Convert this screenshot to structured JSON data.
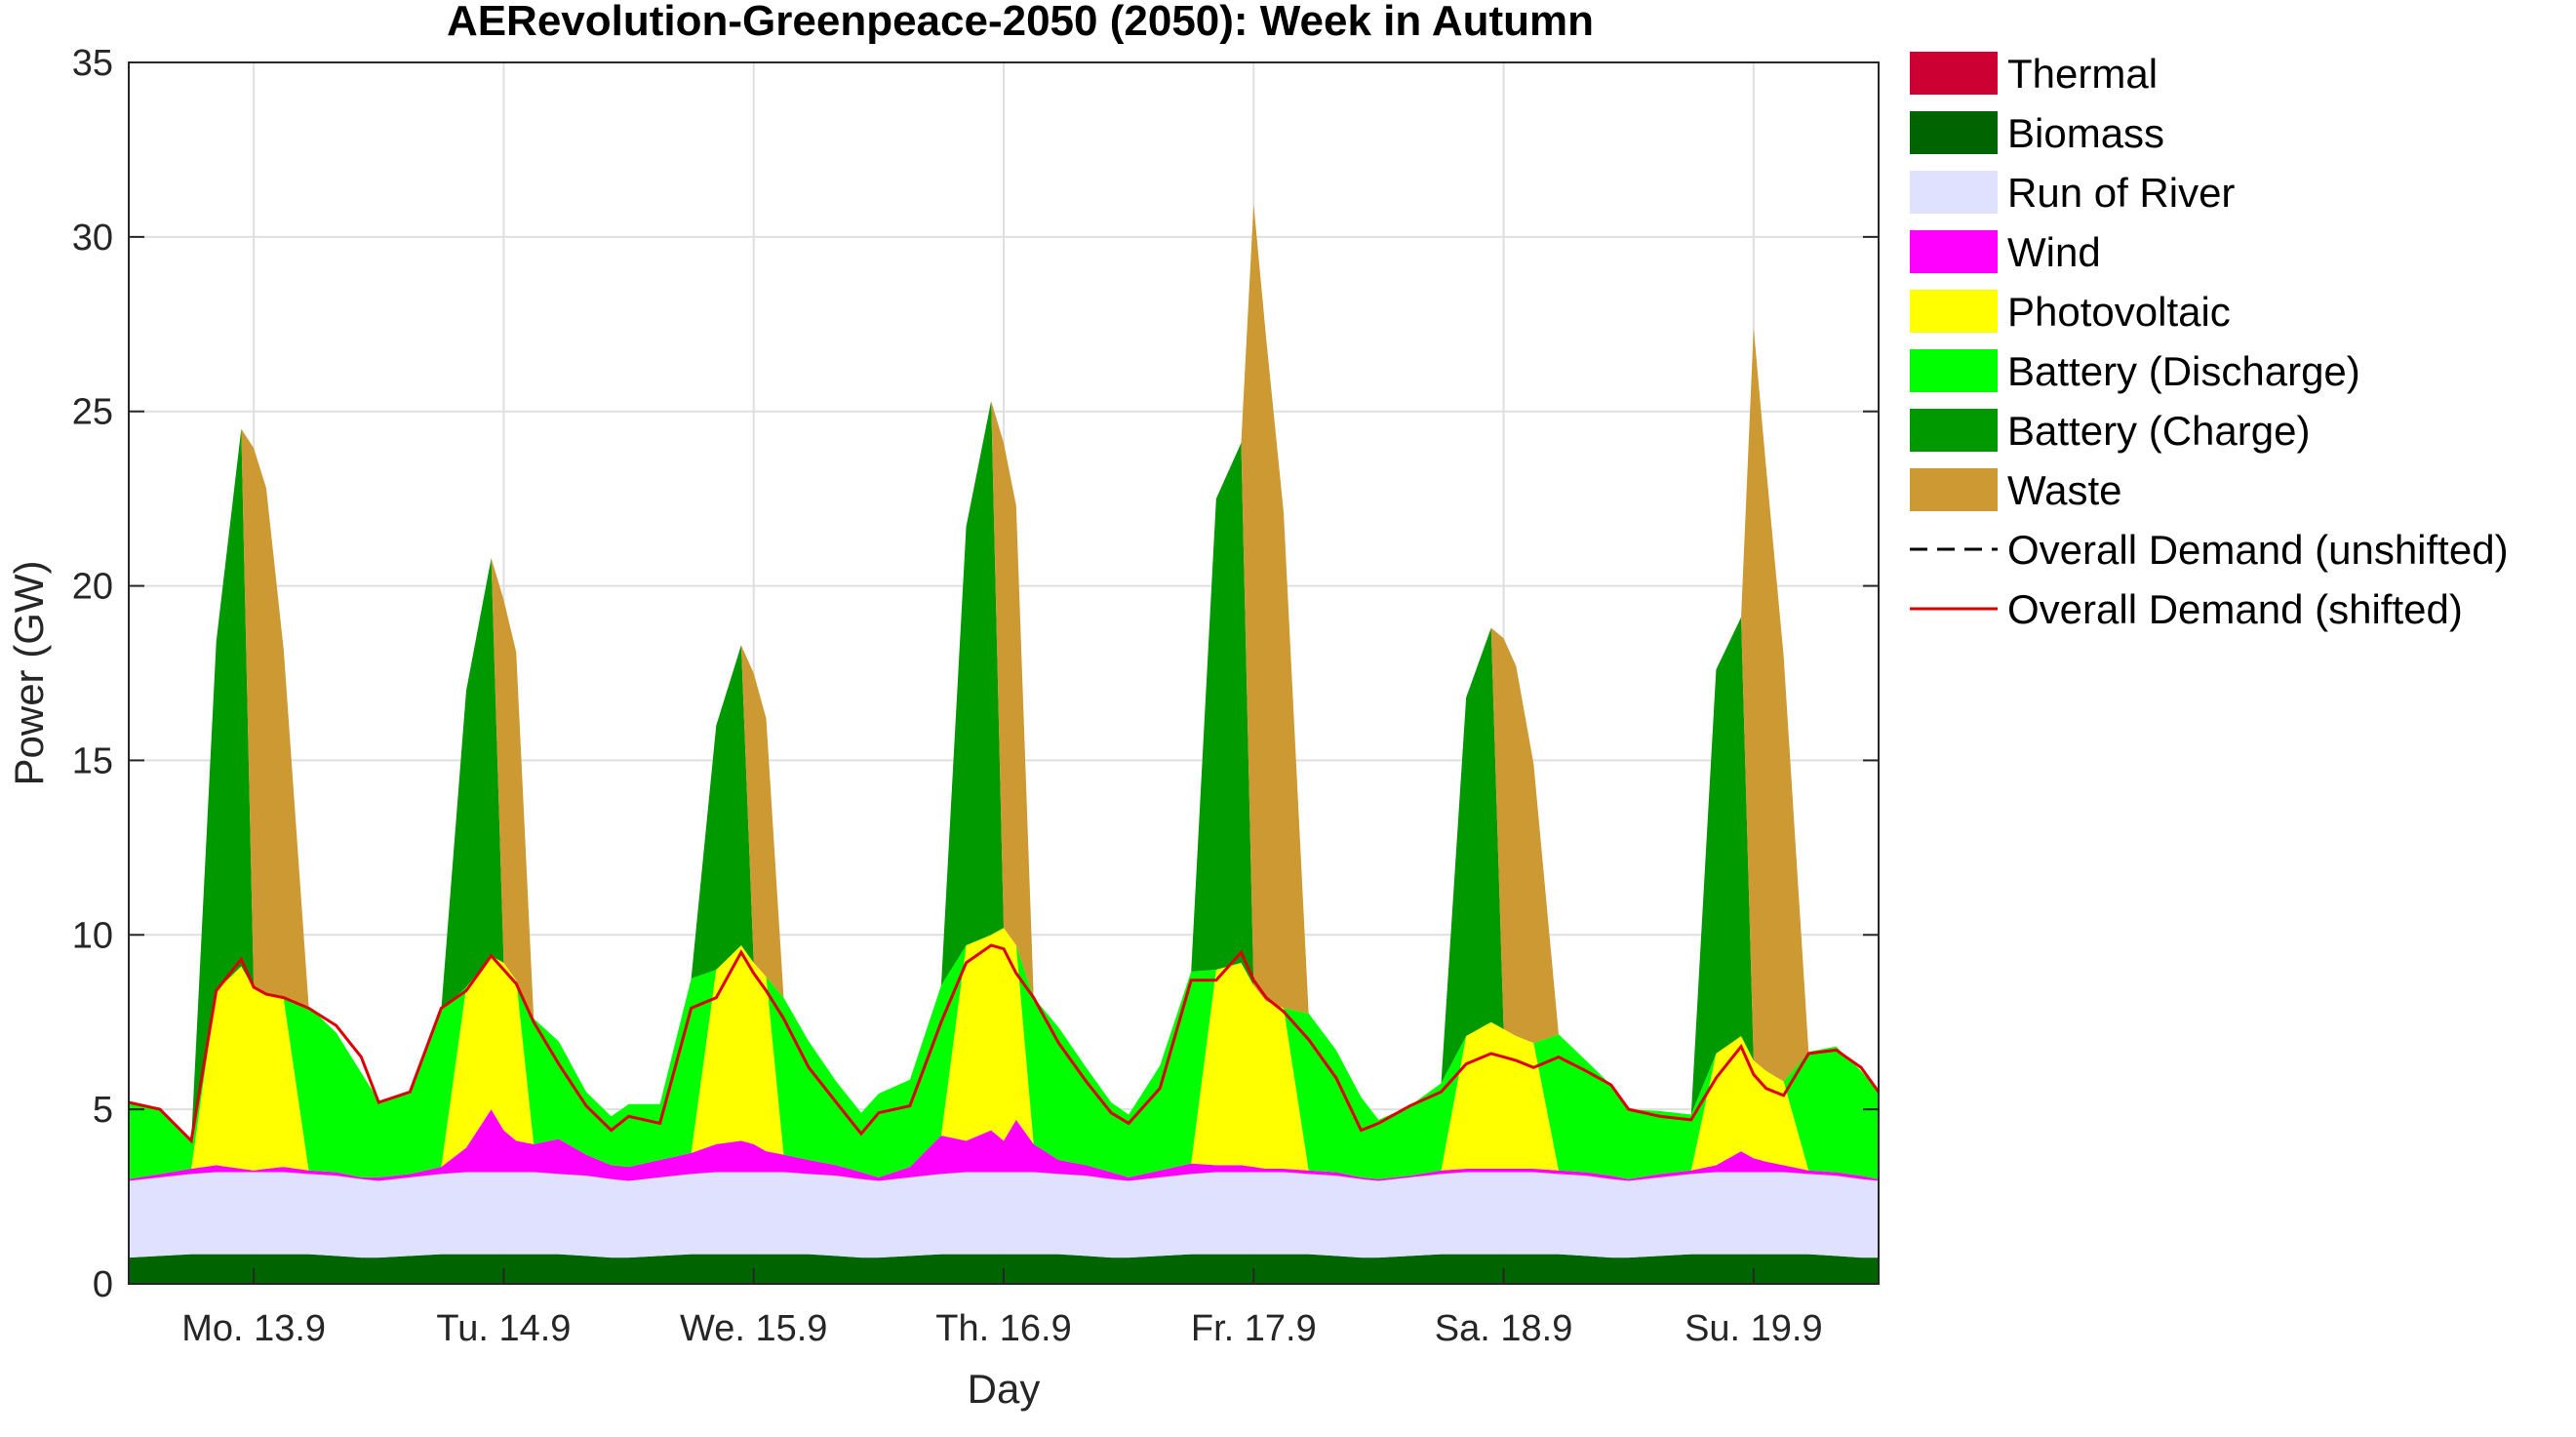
{
  "chart_data": {
    "type": "area",
    "title": "AERevolution-Greenpeace-2050 (2050): Week in Autumn",
    "xlabel": "Day",
    "ylabel": "Power (GW)",
    "ylim": [
      0,
      35
    ],
    "yticks": [
      0,
      5,
      10,
      15,
      20,
      25,
      30,
      35
    ],
    "xlim": [
      0,
      7
    ],
    "x_tick_labels": [
      "Mo. 13.9",
      "Tu. 14.9",
      "We. 15.9",
      "Th. 16.9",
      "Fr. 17.9",
      "Sa. 18.9",
      "Su. 19.9"
    ],
    "x_tick_positions": [
      0.5,
      1.5,
      2.5,
      3.5,
      4.5,
      5.5,
      6.5
    ],
    "grid": true,
    "legend_position": "outside-right",
    "x_unit": "days from Mon 13.9 00:00",
    "x": [
      0,
      0.125,
      0.25,
      0.35,
      0.45,
      0.5,
      0.55,
      0.62,
      0.72,
      0.83,
      0.93,
      1,
      1.125,
      1.25,
      1.35,
      1.45,
      1.5,
      1.55,
      1.62,
      1.72,
      1.83,
      1.93,
      2,
      2.125,
      2.25,
      2.35,
      2.45,
      2.5,
      2.55,
      2.62,
      2.72,
      2.83,
      2.93,
      3,
      3.125,
      3.25,
      3.35,
      3.45,
      3.5,
      3.55,
      3.62,
      3.72,
      3.83,
      3.93,
      4,
      4.125,
      4.25,
      4.35,
      4.45,
      4.5,
      4.55,
      4.62,
      4.72,
      4.83,
      4.93,
      5,
      5.125,
      5.25,
      5.35,
      5.45,
      5.5,
      5.55,
      5.62,
      5.72,
      5.83,
      5.93,
      6,
      6.125,
      6.25,
      6.35,
      6.45,
      6.5,
      6.55,
      6.62,
      6.72,
      6.83,
      6.93,
      7
    ],
    "series": [
      {
        "name": "Thermal",
        "color": "#cc0033",
        "values": [
          0,
          0,
          0,
          0,
          0,
          0,
          0,
          0,
          0,
          0,
          0,
          0,
          0,
          0,
          0,
          0,
          0,
          0,
          0,
          0,
          0,
          0,
          0,
          0,
          0,
          0,
          0,
          0,
          0,
          0,
          0,
          0,
          0,
          0,
          0,
          0,
          0,
          0,
          0,
          0,
          0,
          0,
          0,
          0,
          0,
          0,
          0,
          0,
          0,
          0,
          0,
          0,
          0,
          0,
          0,
          0,
          0,
          0,
          0,
          0,
          0,
          0,
          0,
          0,
          0,
          0,
          0,
          0,
          0,
          0,
          0,
          0,
          0,
          0,
          0,
          0,
          0,
          0
        ]
      },
      {
        "name": "Biomass",
        "color": "#006400",
        "values": [
          0.75,
          0.8,
          0.85,
          0.85,
          0.85,
          0.85,
          0.85,
          0.85,
          0.85,
          0.8,
          0.75,
          0.75,
          0.8,
          0.85,
          0.85,
          0.85,
          0.85,
          0.85,
          0.85,
          0.85,
          0.8,
          0.75,
          0.75,
          0.8,
          0.85,
          0.85,
          0.85,
          0.85,
          0.85,
          0.85,
          0.85,
          0.8,
          0.75,
          0.75,
          0.8,
          0.85,
          0.85,
          0.85,
          0.85,
          0.85,
          0.85,
          0.85,
          0.8,
          0.75,
          0.75,
          0.8,
          0.85,
          0.85,
          0.85,
          0.85,
          0.85,
          0.85,
          0.85,
          0.8,
          0.75,
          0.75,
          0.8,
          0.85,
          0.85,
          0.85,
          0.85,
          0.85,
          0.85,
          0.85,
          0.8,
          0.75,
          0.75,
          0.8,
          0.85,
          0.85,
          0.85,
          0.85,
          0.85,
          0.85,
          0.85,
          0.8,
          0.75,
          0.75
        ]
      },
      {
        "name": "Run of River",
        "color": "#e0e0ff",
        "values": [
          2.2,
          2.25,
          2.3,
          2.35,
          2.35,
          2.35,
          2.35,
          2.35,
          2.3,
          2.3,
          2.25,
          2.2,
          2.25,
          2.3,
          2.35,
          2.35,
          2.35,
          2.35,
          2.35,
          2.3,
          2.3,
          2.25,
          2.2,
          2.25,
          2.3,
          2.35,
          2.35,
          2.35,
          2.35,
          2.35,
          2.3,
          2.3,
          2.25,
          2.2,
          2.25,
          2.3,
          2.35,
          2.35,
          2.35,
          2.35,
          2.35,
          2.3,
          2.3,
          2.25,
          2.2,
          2.25,
          2.3,
          2.35,
          2.35,
          2.35,
          2.35,
          2.35,
          2.3,
          2.3,
          2.25,
          2.2,
          2.25,
          2.3,
          2.35,
          2.35,
          2.35,
          2.35,
          2.35,
          2.3,
          2.3,
          2.25,
          2.2,
          2.25,
          2.3,
          2.35,
          2.35,
          2.35,
          2.35,
          2.35,
          2.3,
          2.3,
          2.25,
          2.2
        ]
      },
      {
        "name": "Wind",
        "color": "#ff00ff",
        "values": [
          0.05,
          0.1,
          0.15,
          0.2,
          0.1,
          0.05,
          0.1,
          0.15,
          0.1,
          0.1,
          0.05,
          0.1,
          0.1,
          0.2,
          0.7,
          1.8,
          1.2,
          0.9,
          0.8,
          1.0,
          0.6,
          0.4,
          0.4,
          0.5,
          0.6,
          0.8,
          0.9,
          0.8,
          0.6,
          0.5,
          0.4,
          0.3,
          0.2,
          0.1,
          0.3,
          1.1,
          0.9,
          1.2,
          0.9,
          1.5,
          0.8,
          0.4,
          0.3,
          0.2,
          0.1,
          0.2,
          0.3,
          0.2,
          0.2,
          0.15,
          0.1,
          0.1,
          0.1,
          0.1,
          0.05,
          0.05,
          0.05,
          0.1,
          0.1,
          0.1,
          0.1,
          0.1,
          0.1,
          0.1,
          0.1,
          0.1,
          0.05,
          0.1,
          0.1,
          0.2,
          0.6,
          0.4,
          0.3,
          0.2,
          0.1,
          0.1,
          0.1,
          0.05
        ]
      },
      {
        "name": "Photovoltaic",
        "color": "#ffff00",
        "values": [
          0,
          0,
          0,
          5.0,
          5.8,
          5.2,
          5.0,
          4.8,
          0,
          0,
          0,
          0,
          0,
          0,
          4.6,
          4.4,
          4.8,
          4.6,
          0,
          0,
          0,
          0,
          0,
          0,
          0,
          5.0,
          5.6,
          5.2,
          5.0,
          0,
          0,
          0,
          0,
          0,
          0,
          0,
          5.6,
          5.6,
          6.1,
          5.0,
          0,
          0,
          0,
          0,
          0,
          0,
          0,
          5.6,
          5.8,
          5.2,
          4.8,
          4.6,
          0,
          0,
          0,
          0,
          0,
          0,
          3.8,
          4.2,
          4.0,
          3.8,
          3.6,
          0,
          0,
          0,
          0,
          0,
          0,
          3.2,
          3.3,
          2.8,
          2.6,
          2.4,
          0,
          0,
          0,
          0
        ]
      },
      {
        "name": "Battery (Discharge)",
        "color": "#00ff00",
        "values": [
          2.2,
          1.9,
          0.8,
          0,
          0,
          0,
          0,
          0,
          4.7,
          4.0,
          3.0,
          2.2,
          2.3,
          4.5,
          0,
          0,
          0,
          0,
          3.6,
          2.8,
          1.8,
          1.4,
          1.8,
          1.6,
          5.0,
          0,
          0,
          0,
          0,
          4.5,
          3.4,
          2.4,
          1.7,
          2.4,
          2.5,
          4.3,
          0,
          0,
          0,
          0,
          4.2,
          3.8,
          2.8,
          2.0,
          1.8,
          3.0,
          5.5,
          0,
          0,
          0,
          0,
          0,
          4.5,
          3.5,
          2.3,
          1.7,
          2.0,
          2.5,
          0,
          0,
          0,
          0,
          0,
          3.9,
          3.2,
          2.6,
          2.0,
          1.8,
          1.6,
          0,
          0,
          0,
          0,
          0,
          3.4,
          3.6,
          3.0,
          2.5
        ]
      },
      {
        "name": "Battery (Charge)",
        "color": "#009900",
        "values": [
          0,
          0,
          0,
          10.0,
          15.4,
          0,
          0,
          0,
          0,
          0,
          0,
          0,
          0,
          0,
          8.5,
          11.4,
          0,
          0,
          0,
          0,
          0,
          0,
          0,
          0,
          0,
          7.0,
          8.6,
          0,
          0,
          0,
          0,
          0,
          0,
          0,
          0,
          0,
          12.0,
          15.3,
          0,
          0,
          0,
          0,
          0,
          0,
          0,
          0,
          0,
          13.5,
          14.9,
          0,
          0,
          0,
          0,
          0,
          0,
          0,
          0,
          0,
          9.7,
          11.3,
          0,
          0,
          0,
          0,
          0,
          0,
          0,
          0,
          0,
          11.0,
          12.0,
          0,
          0,
          0,
          0,
          0,
          0,
          0
        ]
      },
      {
        "name": "Waste",
        "color": "#cc9933",
        "values": [
          0,
          0,
          0,
          0,
          0,
          15.5,
          14.5,
          10.0,
          0,
          0,
          0,
          0,
          0,
          0,
          0,
          0,
          10.4,
          9.4,
          0,
          0,
          0,
          0,
          0,
          0,
          0,
          0,
          0,
          8.3,
          7.4,
          0,
          0,
          0,
          0,
          0,
          0,
          0,
          0,
          0,
          13.9,
          12.6,
          0,
          0,
          0,
          0,
          0,
          0,
          0,
          0,
          0,
          22.4,
          19.0,
          14.2,
          0,
          0,
          0,
          0,
          0,
          0,
          0,
          0,
          11.2,
          10.6,
          8.0,
          0,
          0,
          0,
          0,
          0,
          0,
          0,
          0,
          21.0,
          17.3,
          12.2,
          0,
          0,
          0,
          0
        ]
      }
    ],
    "demand_unshifted": {
      "name": "Overall Demand (unshifted)",
      "color": "#000000",
      "style": "dashed"
    },
    "demand_shifted": {
      "name": "Overall Demand (shifted)",
      "color": "#dd0000",
      "style": "solid",
      "values": [
        5.2,
        5.0,
        4.1,
        8.4,
        9.3,
        8.5,
        8.3,
        8.2,
        7.9,
        7.4,
        6.5,
        5.2,
        5.5,
        7.9,
        8.4,
        9.4,
        9.0,
        8.6,
        7.5,
        6.3,
        5.1,
        4.4,
        4.8,
        4.6,
        7.9,
        8.2,
        9.5,
        8.9,
        8.4,
        7.6,
        6.2,
        5.2,
        4.3,
        4.9,
        5.1,
        7.5,
        9.2,
        9.7,
        9.6,
        8.9,
        8.2,
        6.9,
        5.8,
        4.9,
        4.6,
        5.6,
        8.7,
        8.7,
        9.5,
        8.7,
        8.2,
        7.8,
        7.0,
        5.9,
        4.4,
        4.6,
        5.1,
        5.5,
        6.3,
        6.6,
        6.5,
        6.4,
        6.2,
        6.5,
        6.1,
        5.7,
        5.0,
        4.8,
        4.7,
        5.9,
        6.8,
        6.0,
        5.6,
        5.4,
        6.6,
        6.7,
        6.2,
        5.5
      ]
    }
  }
}
